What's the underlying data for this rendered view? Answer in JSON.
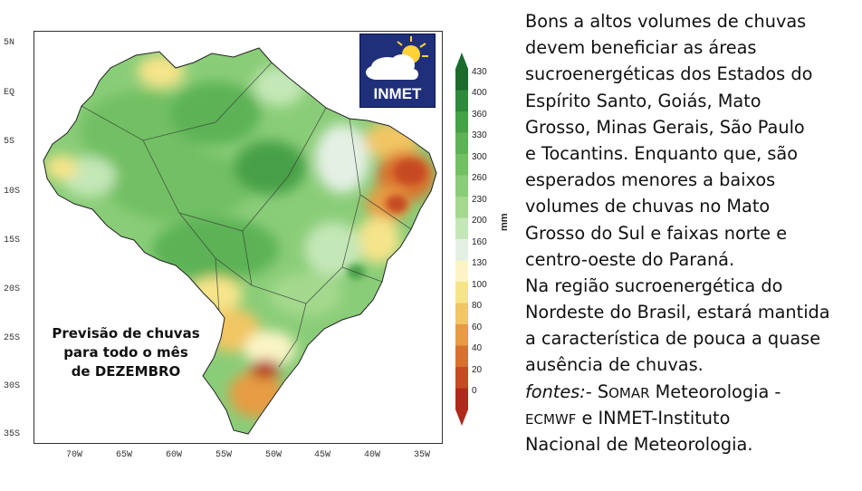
{
  "map": {
    "caption_lines": [
      "Previsão de chuvas",
      "para todo o mês",
      "de DEZEMBRO"
    ],
    "latitude_ticks": [
      "5N",
      "EQ",
      "5S",
      "10S",
      "15S",
      "20S",
      "25S",
      "30S",
      "35S"
    ],
    "longitude_ticks": [
      "70W",
      "65W",
      "60W",
      "55W",
      "50W",
      "45W",
      "40W",
      "35W"
    ],
    "logo_text": "INMET"
  },
  "colorbar": {
    "unit": "mm",
    "levels": [
      "430",
      "400",
      "360",
      "330",
      "300",
      "260",
      "230",
      "200",
      "160",
      "130",
      "100",
      "80",
      "60",
      "40",
      "20",
      "0"
    ],
    "colors": [
      "#1a6b2c",
      "#2e8a3a",
      "#46a046",
      "#5cb255",
      "#72c064",
      "#8acd78",
      "#a4d98d",
      "#c4e7b7",
      "#e4f0e4",
      "#fbf5c6",
      "#f6e48a",
      "#f1c663",
      "#e79b42",
      "#d9712e",
      "#c64a24",
      "#b02a1c"
    ]
  },
  "text": {
    "lines": [
      "Bons a altos volumes de chuvas",
      "devem beneficiar as áreas",
      "sucroenergéticas dos Estados do",
      "Espírito Santo, Goiás, Mato",
      "Grosso, Minas Gerais, São Paulo",
      "e Tocantins. Enquanto que, são",
      "esperados menores a baixos",
      "volumes de chuvas no Mato",
      "Grosso do Sul e faixas norte e",
      "centro-oeste do Paraná.",
      "Na região sucroenergética do",
      "Nordeste do Brasil, estará mantida",
      "a característica de pouca a quase",
      "ausência de chuvas."
    ],
    "sources_italic": "fontes:",
    "sources_rest_1": "- S",
    "sources_smallcaps_1": "OMAR",
    "sources_rest_2": " Meteorologia -",
    "sources_line2_small": "ECMWF",
    "sources_line2_rest": " e INMET-Instituto",
    "sources_line3": "Nacional de Meteorologia."
  }
}
